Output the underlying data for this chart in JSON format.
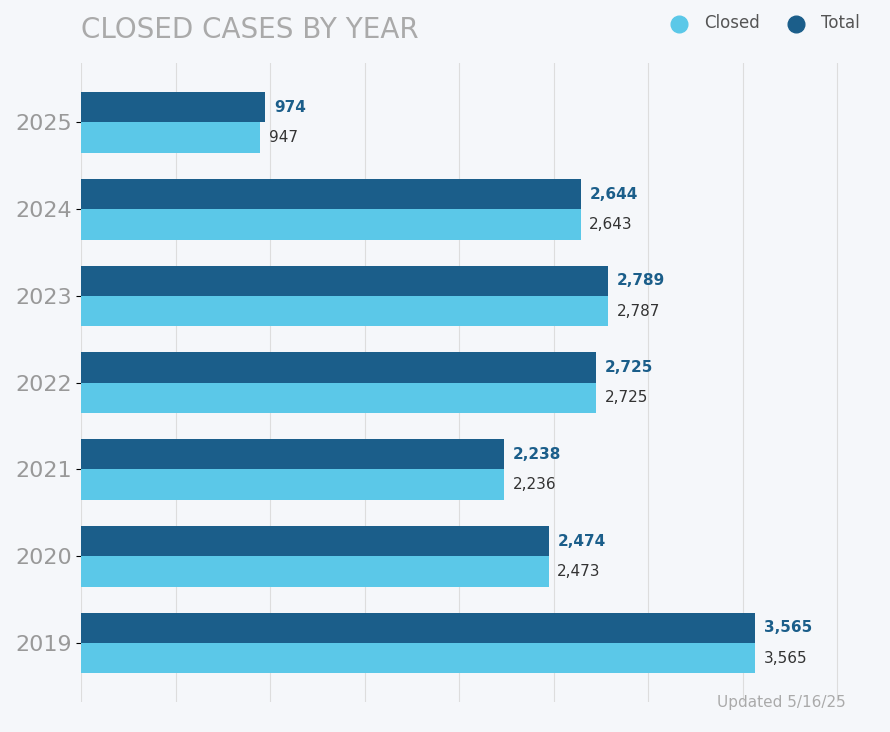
{
  "title": "CLOSED CASES BY YEAR",
  "years": [
    "2025",
    "2024",
    "2023",
    "2022",
    "2021",
    "2020",
    "2019"
  ],
  "closed_values": [
    947,
    2643,
    2787,
    2725,
    2236,
    2473,
    3565
  ],
  "total_values": [
    974,
    2644,
    2789,
    2725,
    2238,
    2474,
    3565
  ],
  "closed_color": "#5BC8E8",
  "total_color": "#1B5E8A",
  "closed_label": "Closed",
  "total_label": "Total",
  "closed_label_color": "#333333",
  "total_label_color": "#1B5E8A",
  "background_color": "#f5f7fa",
  "title_color": "#aaaaaa",
  "title_fontsize": 20,
  "annotation_fontsize": 11,
  "bar_height": 0.35,
  "xlim": [
    0,
    4200
  ],
  "update_text": "Updated 5/16/25",
  "update_color": "#aaaaaa",
  "grid_color": "#dddddd",
  "ytick_color": "#999999",
  "ytick_fontsize": 16
}
